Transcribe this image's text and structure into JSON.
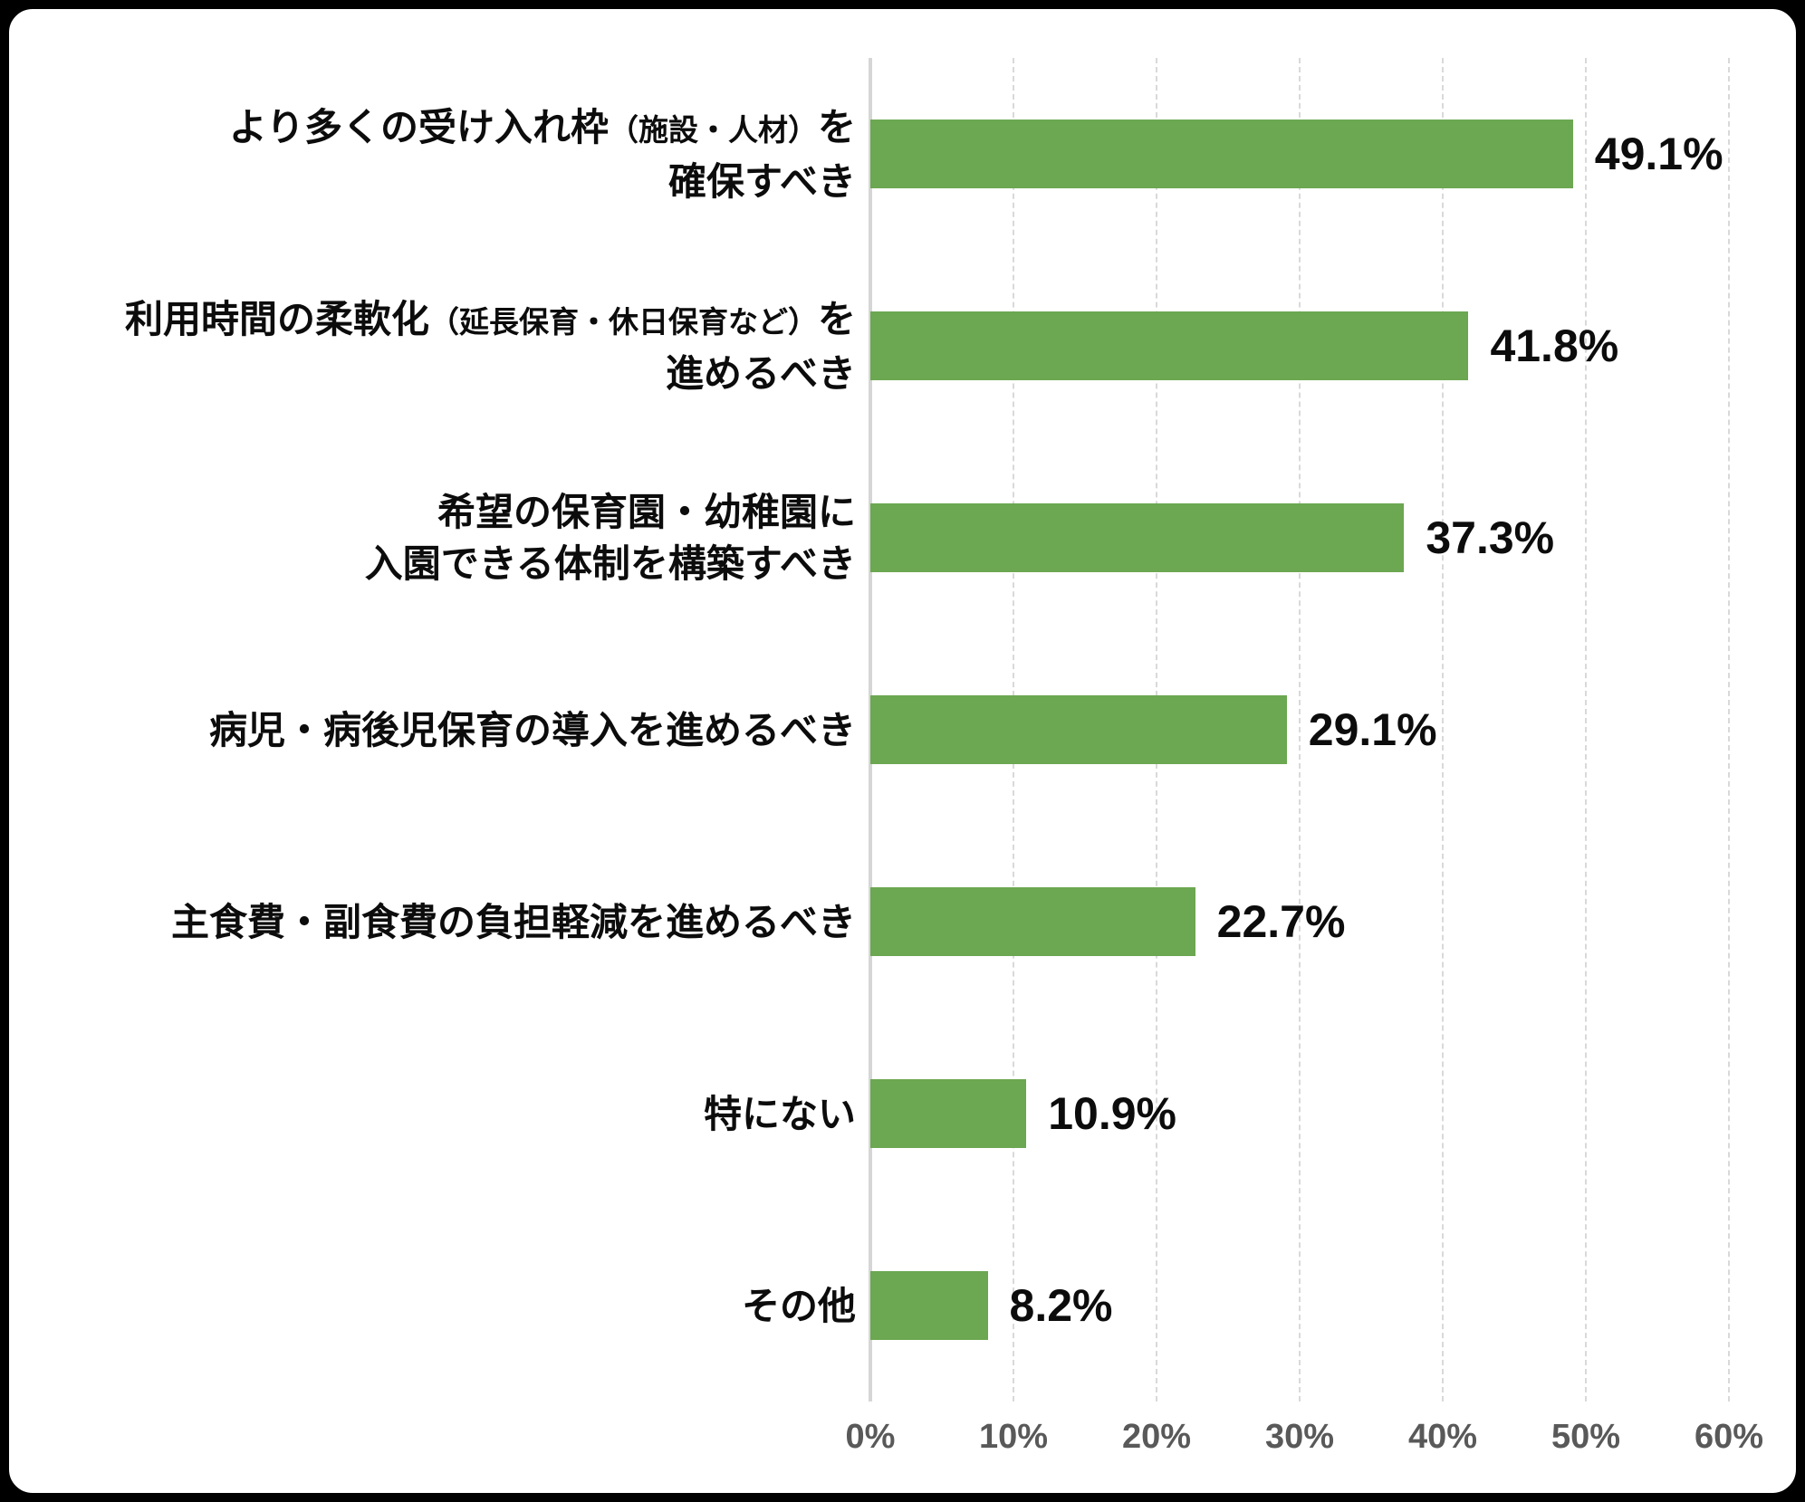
{
  "chart_data": {
    "type": "bar",
    "orientation": "horizontal",
    "title": "",
    "xlabel": "",
    "ylabel": "",
    "xlim": [
      0,
      60
    ],
    "x_tick_step": 10,
    "x_ticks": [
      "0%",
      "10%",
      "20%",
      "30%",
      "40%",
      "50%",
      "60%"
    ],
    "grid": "vertical-dashed",
    "legend": "none",
    "bar_color": "#6CA751",
    "tick_label_color": "#595959",
    "text_color": "#0c0c0c",
    "categories_text": [
      "より多くの受け入れ枠（施設・人材）を確保すべき",
      "利用時間の柔軟化（延長保育・休日保育など）を進めるべき",
      "希望の保育園・幼稚園に入園できる体制を構築すべき",
      "病児・病後児保育の導入を進めるべき",
      "主食費・副食費の負担軽減を進めるべき",
      "特にない",
      "その他"
    ],
    "values": [
      49.1,
      41.8,
      37.3,
      29.1,
      22.7,
      10.9,
      8.2
    ],
    "value_labels": [
      "49.1%",
      "41.8%",
      "37.3%",
      "29.1%",
      "22.7%",
      "10.9%",
      "8.2%"
    ],
    "rows": [
      {
        "lines": [
          [
            {
              "text": "より多くの受け入れ枠",
              "small": false
            },
            {
              "text": "（施設・人材）",
              "small": true
            },
            {
              "text": "を",
              "small": false
            }
          ],
          [
            {
              "text": "確保すべき",
              "small": false
            }
          ]
        ],
        "value": 49.1,
        "value_label": "49.1%"
      },
      {
        "lines": [
          [
            {
              "text": "利用時間の柔軟化",
              "small": false
            },
            {
              "text": "（延長保育・休日保育など）",
              "small": true
            },
            {
              "text": "を",
              "small": false
            }
          ],
          [
            {
              "text": "進めるべき",
              "small": false
            }
          ]
        ],
        "value": 41.8,
        "value_label": "41.8%"
      },
      {
        "lines": [
          [
            {
              "text": "希望の保育園・幼稚園に",
              "small": false
            }
          ],
          [
            {
              "text": "入園できる体制を構築すべき",
              "small": false
            }
          ]
        ],
        "value": 37.3,
        "value_label": "37.3%"
      },
      {
        "lines": [
          [
            {
              "text": "病児・病後児保育の導入を進めるべき",
              "small": false
            }
          ]
        ],
        "value": 29.1,
        "value_label": "29.1%"
      },
      {
        "lines": [
          [
            {
              "text": "主食費・副食費の負担軽減を進めるべき",
              "small": false
            }
          ]
        ],
        "value": 22.7,
        "value_label": "22.7%"
      },
      {
        "lines": [
          [
            {
              "text": "特にない",
              "small": false
            }
          ]
        ],
        "value": 10.9,
        "value_label": "10.9%"
      },
      {
        "lines": [
          [
            {
              "text": "その他",
              "small": false
            }
          ]
        ],
        "value": 8.2,
        "value_label": "8.2%"
      }
    ]
  }
}
